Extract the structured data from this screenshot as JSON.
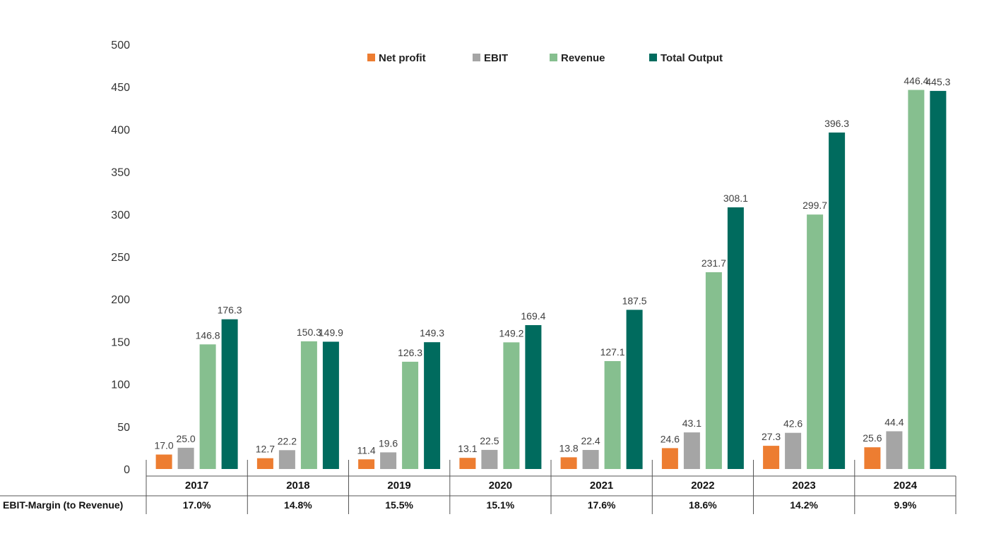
{
  "chart_data": {
    "type": "bar",
    "title": "",
    "xlabel": "",
    "ylabel": "",
    "ylim": [
      0,
      500
    ],
    "yticks": [
      0,
      50,
      100,
      150,
      200,
      250,
      300,
      350,
      400,
      450,
      500
    ],
    "grid": false,
    "legend_position": "top",
    "categories": [
      "2017",
      "2018",
      "2019",
      "2020",
      "2021",
      "2022",
      "2023",
      "2024"
    ],
    "series": [
      {
        "name": "Net profit",
        "color": "#ED7D31",
        "values": [
          17.0,
          12.7,
          11.4,
          13.1,
          13.8,
          24.6,
          27.3,
          25.6
        ],
        "labels": [
          "17.0",
          "12.7",
          "11.4",
          "13.1",
          "13.8",
          "24.6",
          "27.3",
          "25.6"
        ]
      },
      {
        "name": "EBIT",
        "color": "#A5A5A5",
        "values": [
          25.0,
          22.2,
          19.6,
          22.5,
          22.4,
          43.1,
          42.6,
          44.4
        ],
        "labels": [
          "25.0",
          "22.2",
          "19.6",
          "22.5",
          "22.4",
          "43.1",
          "42.6",
          "44.4"
        ]
      },
      {
        "name": "Revenue",
        "color": "#86BF8F",
        "values": [
          146.8,
          150.3,
          126.3,
          149.2,
          127.1,
          231.7,
          299.7,
          446.4
        ],
        "labels": [
          "146.8",
          "150.3",
          "126.3",
          "149.2",
          "127.1",
          "231.7",
          "299.7",
          "446.4"
        ]
      },
      {
        "name": "Total Output",
        "color": "#006B5E",
        "values": [
          176.3,
          149.9,
          149.3,
          169.4,
          187.5,
          308.1,
          396.3,
          445.3
        ],
        "labels": [
          "176.3",
          "149.9",
          "149.3",
          "169.4",
          "187.5",
          "308.1",
          "396.3",
          "445.3"
        ]
      }
    ],
    "table_row": {
      "label": "EBIT-Margin (to Revenue)",
      "values": [
        "17.0%",
        "14.8%",
        "15.5%",
        "15.1%",
        "17.6%",
        "18.6%",
        "14.2%",
        "9.9%"
      ]
    }
  }
}
